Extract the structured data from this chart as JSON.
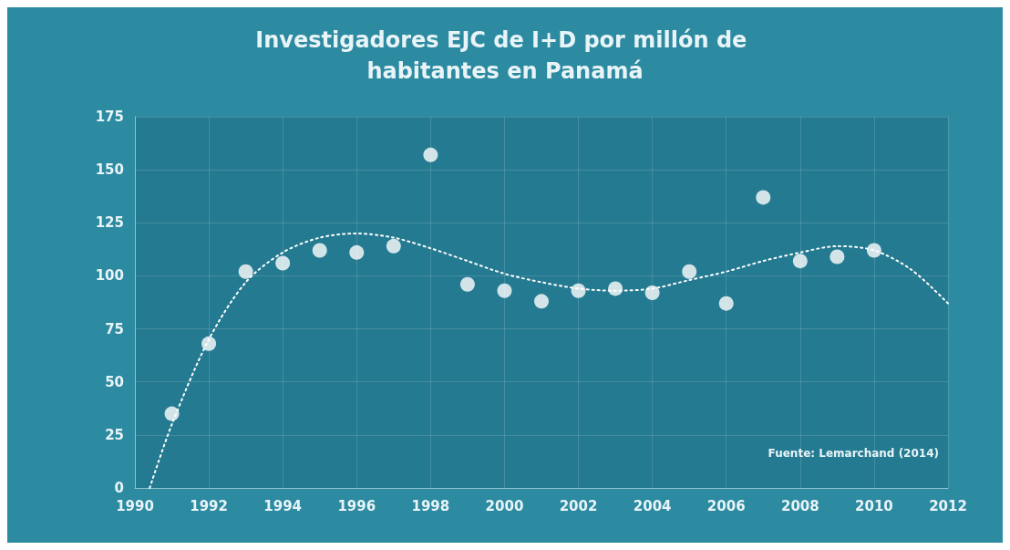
{
  "chart_data": {
    "type": "scatter",
    "title": "Investigadores EJC de I+D por millón de habitantes en Panamá",
    "xlim": [
      1990,
      2012
    ],
    "xticks": [
      1990,
      1992,
      1994,
      1996,
      1998,
      2000,
      2002,
      2004,
      2006,
      2008,
      2010,
      2012
    ],
    "ylim": [
      0,
      175
    ],
    "yticks": [
      0,
      25,
      50,
      75,
      100,
      125,
      150,
      175
    ],
    "grid": true,
    "annotations": [
      "Fuente: Lemarchand (2014)"
    ],
    "series": [
      {
        "color": "#ffffff",
        "marker": "circle",
        "x": [
          1991,
          1992,
          1993,
          1994,
          1995,
          1996,
          1997,
          1998,
          1999,
          2000,
          2001,
          2002,
          2003,
          2004,
          2005,
          2006,
          2007,
          2008,
          2009,
          2010
        ],
        "values": [
          35,
          68,
          102,
          106,
          112,
          111,
          114,
          157,
          96,
          93,
          88,
          93,
          94,
          92,
          102,
          87,
          137,
          107,
          109,
          112
        ]
      },
      {
        "type": "line",
        "color": "#ffffff",
        "marker": "none",
        "line_style": "dotted",
        "x": [
          1990.4,
          1991,
          1992,
          1993,
          1994,
          1995,
          1996,
          1997,
          1998,
          1999,
          2000,
          2001,
          2002,
          2003,
          2004,
          2005,
          2006,
          2007,
          2008,
          2009,
          2010,
          2011,
          2012
        ],
        "values": [
          0,
          30,
          70,
          97,
          111,
          118,
          120,
          118,
          113,
          107,
          101,
          97,
          94,
          93,
          94,
          98,
          102,
          107,
          111,
          114,
          112,
          103,
          87
        ]
      }
    ]
  }
}
